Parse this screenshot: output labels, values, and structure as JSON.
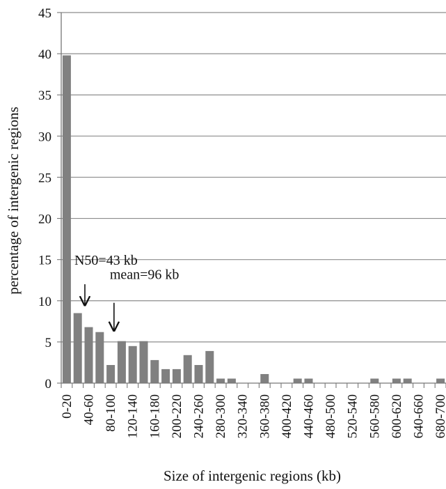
{
  "chart_data": {
    "type": "bar",
    "xlabel": "Size of intergenic regions (kb)",
    "ylabel": "percentage of intergenic regions",
    "ylim": [
      0,
      45
    ],
    "yticks": [
      0,
      5,
      10,
      15,
      20,
      25,
      30,
      35,
      40,
      45
    ],
    "grid": "horizontal",
    "legend": "none",
    "bar_color": "#808080",
    "grid_color": "#8c8c8c",
    "categories": [
      "0-20",
      "20-40",
      "40-60",
      "60-80",
      "80-100",
      "100-120",
      "120-140",
      "140-160",
      "160-180",
      "180-200",
      "200-220",
      "220-240",
      "240-260",
      "260-280",
      "280-300",
      "300-320",
      "320-340",
      "340-360",
      "360-380",
      "380-400",
      "400-420",
      "420-440",
      "440-460",
      "460-480",
      "480-500",
      "500-520",
      "520-540",
      "540-560",
      "560-580",
      "580-600",
      "600-620",
      "620-640",
      "640-660",
      "660-680",
      "680-700"
    ],
    "tick_labels_shown": [
      "0-20",
      "40-60",
      "80-100",
      "120-140",
      "160-180",
      "200-220",
      "240-260",
      "280-300",
      "320-340",
      "360-380",
      "400-420",
      "440-460",
      "480-500",
      "520-540",
      "560-580",
      "600-620",
      "640-660",
      "680-700"
    ],
    "values": [
      39.8,
      8.5,
      6.8,
      6.2,
      2.2,
      5.1,
      4.5,
      5.1,
      2.8,
      1.7,
      1.7,
      3.4,
      2.2,
      3.9,
      0.55,
      0.55,
      0,
      0,
      1.1,
      0,
      0,
      0.55,
      0.55,
      0,
      0,
      0,
      0,
      0,
      0.55,
      0,
      0.55,
      0.55,
      0,
      0,
      0.55
    ],
    "annotations": [
      {
        "text": "N50=43 kb",
        "x": 43,
        "y": 9.3
      },
      {
        "text": "mean=96 kb",
        "x": 96,
        "y": 6.2
      }
    ]
  }
}
